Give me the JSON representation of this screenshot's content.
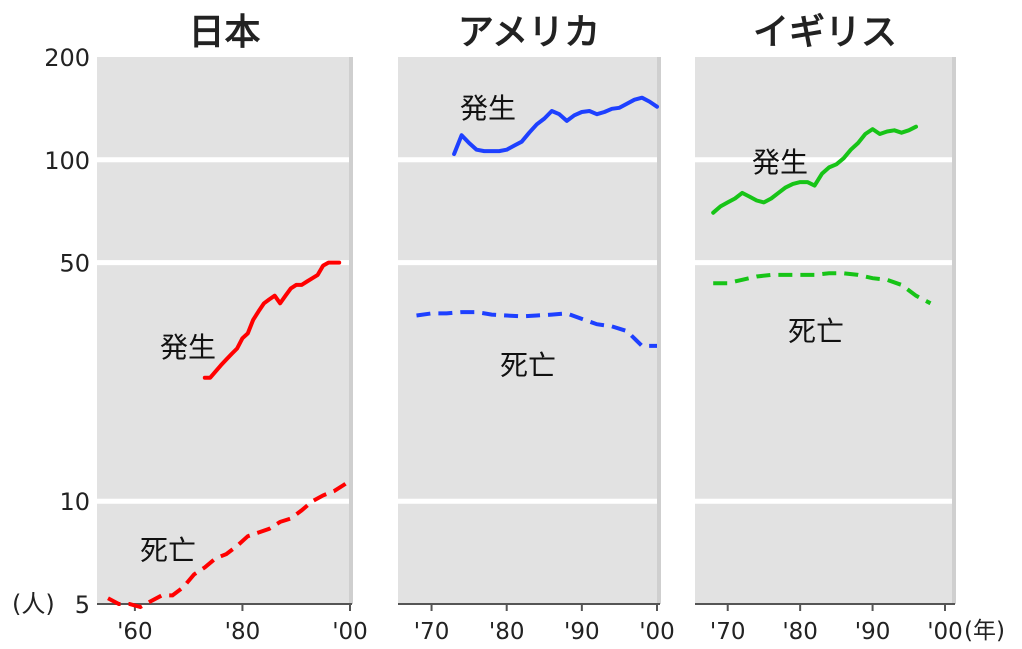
{
  "y_axis": {
    "unit": "(人)",
    "ticks": [
      5,
      10,
      50,
      100,
      200
    ],
    "tick_labels": [
      "5",
      "10",
      "50",
      "100",
      "200"
    ],
    "scale": "log",
    "range": [
      5,
      200
    ]
  },
  "x_unit": "(年)",
  "chart_data": [
    {
      "type": "line",
      "title": "日本",
      "xlim": [
        1955,
        2000
      ],
      "ylim": [
        5,
        200
      ],
      "xticks": [
        1960,
        1980,
        2000
      ],
      "xtick_labels": [
        "'60",
        "'80",
        "'00"
      ],
      "grid": true,
      "series": [
        {
          "name": "発生",
          "color": "#ff0000",
          "style": "solid",
          "x": [
            1973,
            1974,
            1975,
            1976,
            1977,
            1978,
            1979,
            1980,
            1981,
            1982,
            1983,
            1984,
            1985,
            1986,
            1987,
            1988,
            1989,
            1990,
            1991,
            1992,
            1993,
            1994,
            1995,
            1996,
            1997,
            1998
          ],
          "y": [
            23,
            23,
            24,
            25,
            26,
            27,
            28,
            30,
            31,
            34,
            36,
            38,
            39,
            40,
            38,
            40,
            42,
            43,
            43,
            44,
            45,
            46,
            49,
            50,
            50,
            50
          ]
        },
        {
          "name": "死亡",
          "color": "#ff0000",
          "style": "dashed",
          "x": [
            1955,
            1957,
            1959,
            1961,
            1963,
            1965,
            1967,
            1969,
            1971,
            1973,
            1975,
            1977,
            1979,
            1981,
            1983,
            1985,
            1987,
            1989,
            1991,
            1993,
            1995,
            1997,
            1999,
            2000
          ],
          "y": [
            5.2,
            5.0,
            5.0,
            4.9,
            5.1,
            5.3,
            5.3,
            5.6,
            6.1,
            6.4,
            6.8,
            7.0,
            7.4,
            7.9,
            8.1,
            8.3,
            8.7,
            8.9,
            9.4,
            10.0,
            10.4,
            10.7,
            11.2,
            11.5
          ]
        }
      ]
    },
    {
      "type": "line",
      "title": "アメリカ",
      "xlim": [
        1967,
        2000
      ],
      "ylim": [
        5,
        200
      ],
      "xticks": [
        1970,
        1980,
        1990,
        2000
      ],
      "xtick_labels": [
        "'70",
        "'80",
        "'90",
        "'00"
      ],
      "grid": true,
      "series": [
        {
          "name": "発生",
          "color": "#1e40ff",
          "style": "solid",
          "x": [
            1973,
            1974,
            1975,
            1976,
            1977,
            1978,
            1979,
            1980,
            1981,
            1982,
            1983,
            1984,
            1985,
            1986,
            1987,
            1988,
            1989,
            1990,
            1991,
            1992,
            1993,
            1994,
            1995,
            1996,
            1997,
            1998,
            1999,
            2000
          ],
          "y": [
            104,
            118,
            112,
            107,
            106,
            106,
            106,
            107,
            110,
            113,
            120,
            127,
            132,
            139,
            136,
            130,
            135,
            138,
            139,
            136,
            138,
            141,
            142,
            146,
            150,
            152,
            148,
            143
          ]
        },
        {
          "name": "死亡",
          "color": "#1e40ff",
          "style": "dashed",
          "x": [
            1968,
            1970,
            1972,
            1974,
            1976,
            1978,
            1980,
            1982,
            1984,
            1986,
            1988,
            1990,
            1992,
            1994,
            1996,
            1998,
            2000
          ],
          "y": [
            35.0,
            35.5,
            35.5,
            35.8,
            35.8,
            35.2,
            35.0,
            34.8,
            35.0,
            35.2,
            35.5,
            34.2,
            33.0,
            32.5,
            31.5,
            28.5,
            28.5
          ]
        }
      ]
    },
    {
      "type": "line",
      "title": "イギリス",
      "xlim": [
        1967,
        2000
      ],
      "ylim": [
        5,
        200
      ],
      "xticks": [
        1970,
        1980,
        1990,
        2000
      ],
      "xtick_labels": [
        "'70",
        "'80",
        "'90",
        "'00"
      ],
      "grid": true,
      "series": [
        {
          "name": "発生",
          "color": "#17c417",
          "style": "solid",
          "x": [
            1968,
            1969,
            1970,
            1971,
            1972,
            1973,
            1974,
            1975,
            1976,
            1977,
            1978,
            1979,
            1980,
            1981,
            1982,
            1983,
            1984,
            1985,
            1986,
            1987,
            1988,
            1989,
            1990,
            1991,
            1992,
            1993,
            1994,
            1995,
            1996
          ],
          "y": [
            70,
            73,
            75,
            77,
            80,
            78,
            76,
            75,
            77,
            80,
            83,
            85,
            86,
            86,
            84,
            91,
            95,
            97,
            101,
            107,
            112,
            119,
            123,
            119,
            121,
            122,
            120,
            122,
            125
          ]
        },
        {
          "name": "死亡",
          "color": "#17c417",
          "style": "dashed",
          "x": [
            1968,
            1970,
            1972,
            1974,
            1976,
            1978,
            1980,
            1982,
            1984,
            1986,
            1988,
            1990,
            1992,
            1994,
            1996,
            1998
          ],
          "y": [
            43.5,
            43.5,
            44.5,
            45.5,
            46.0,
            46.0,
            46.0,
            46.0,
            46.5,
            46.5,
            46.0,
            45.0,
            44.5,
            43.0,
            40.0,
            38.0
          ]
        }
      ]
    }
  ]
}
